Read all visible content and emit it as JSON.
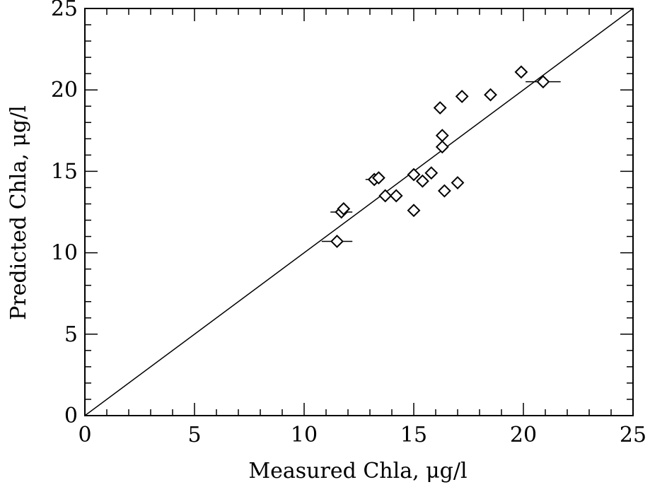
{
  "chart_data": {
    "type": "scatter",
    "xlabel": "Measured Chla, μg/l",
    "ylabel": "Predicted Chla, μg/l",
    "xlim": [
      0,
      25
    ],
    "ylim": [
      0,
      25
    ],
    "x_ticks": [
      0,
      5,
      10,
      15,
      20,
      25
    ],
    "y_ticks": [
      0,
      5,
      10,
      15,
      20,
      25
    ],
    "x_tick_labels": [
      "0",
      "5",
      "10",
      "15",
      "20",
      "25"
    ],
    "y_tick_labels": [
      "0",
      "5",
      "10",
      "15",
      "20",
      "25"
    ],
    "grid": false,
    "marker": "diamond",
    "reference_line": {
      "from": [
        0,
        0
      ],
      "to": [
        25,
        25
      ]
    },
    "series": [
      {
        "points": [
          {
            "x": 11.5,
            "y": 10.7,
            "xerr": 0.7
          },
          {
            "x": 11.7,
            "y": 12.5,
            "xerr": 0.5
          },
          {
            "x": 11.8,
            "y": 12.7
          },
          {
            "x": 13.2,
            "y": 14.5,
            "xerr": 0.4
          },
          {
            "x": 13.4,
            "y": 14.6
          },
          {
            "x": 13.7,
            "y": 13.5
          },
          {
            "x": 14.2,
            "y": 13.5
          },
          {
            "x": 15.0,
            "y": 14.8
          },
          {
            "x": 15.0,
            "y": 12.6
          },
          {
            "x": 15.4,
            "y": 14.4
          },
          {
            "x": 15.8,
            "y": 14.9
          },
          {
            "x": 16.2,
            "y": 18.9
          },
          {
            "x": 16.3,
            "y": 17.2
          },
          {
            "x": 16.3,
            "y": 16.5
          },
          {
            "x": 16.4,
            "y": 13.8
          },
          {
            "x": 17.0,
            "y": 14.3
          },
          {
            "x": 17.2,
            "y": 19.6
          },
          {
            "x": 18.5,
            "y": 19.7
          },
          {
            "x": 19.9,
            "y": 21.1
          },
          {
            "x": 20.9,
            "y": 20.5,
            "xerr": 0.8
          }
        ]
      }
    ]
  }
}
